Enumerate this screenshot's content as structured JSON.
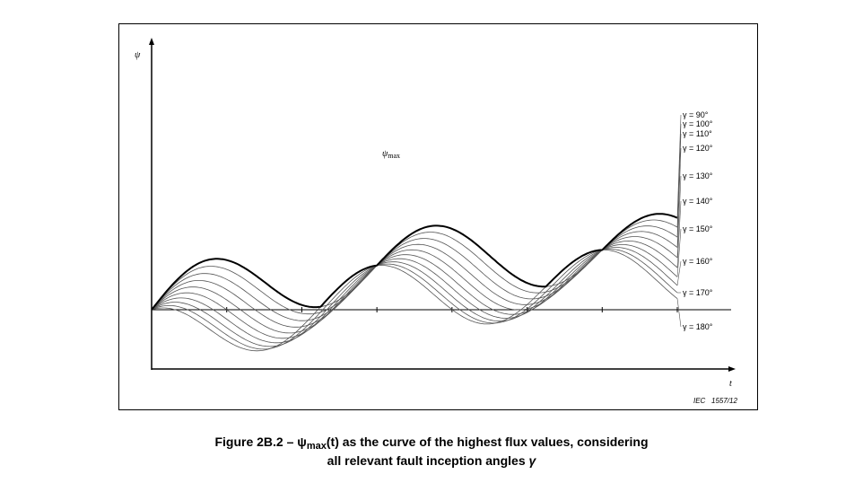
{
  "figure": {
    "caption_line1_prefix": "Figure 2B.2 – ",
    "caption_psi": "ψ",
    "caption_sub": "max",
    "caption_line1_suffix": "(t) as the curve of the highest flux values, considering",
    "caption_line2_prefix": "all relevant fault inception angles ",
    "caption_gamma": "γ",
    "source_tag": "IEC   1557/12"
  },
  "chart_data": {
    "type": "line",
    "title": "",
    "xlabel": "t",
    "ylabel": "ψ",
    "envelope_label": "ψmax",
    "grid": false,
    "legend": "none; each curve labelled at its right end",
    "x_unit": "electrical angle ωt in degrees",
    "x_range": [
      0,
      840
    ],
    "y_range": [
      -0.9,
      6.0
    ],
    "angles_deg": [
      90,
      100,
      110,
      120,
      130,
      140,
      150,
      160,
      170,
      180
    ],
    "series": [
      {
        "name": "γ =  90°",
        "gamma": 90
      },
      {
        "name": "γ = 100°",
        "gamma": 100
      },
      {
        "name": "γ = 110°",
        "gamma": 110
      },
      {
        "name": "γ = 120°",
        "gamma": 120
      },
      {
        "name": "γ = 130°",
        "gamma": 130
      },
      {
        "name": "γ = 140°",
        "gamma": 140
      },
      {
        "name": "γ = 150°",
        "gamma": 150
      },
      {
        "name": "γ = 160°",
        "gamma": 160
      },
      {
        "name": "γ = 170°",
        "gamma": 170
      },
      {
        "name": "γ = 180°",
        "gamma": 180
      }
    ],
    "model": "ψ(t) = K·(cos(γ) − cos(ωt + γ)) + 2·(1 − e^(−t/τ))",
    "model_params": {
      "K": 1,
      "tau_deg": 343.8
    },
    "x_ticks": [
      0,
      120,
      240,
      360,
      480,
      600,
      720,
      840
    ],
    "tick_labels": ""
  },
  "colors": {
    "curve": "#555555",
    "envelope": "#000000",
    "axis": "#000000"
  }
}
